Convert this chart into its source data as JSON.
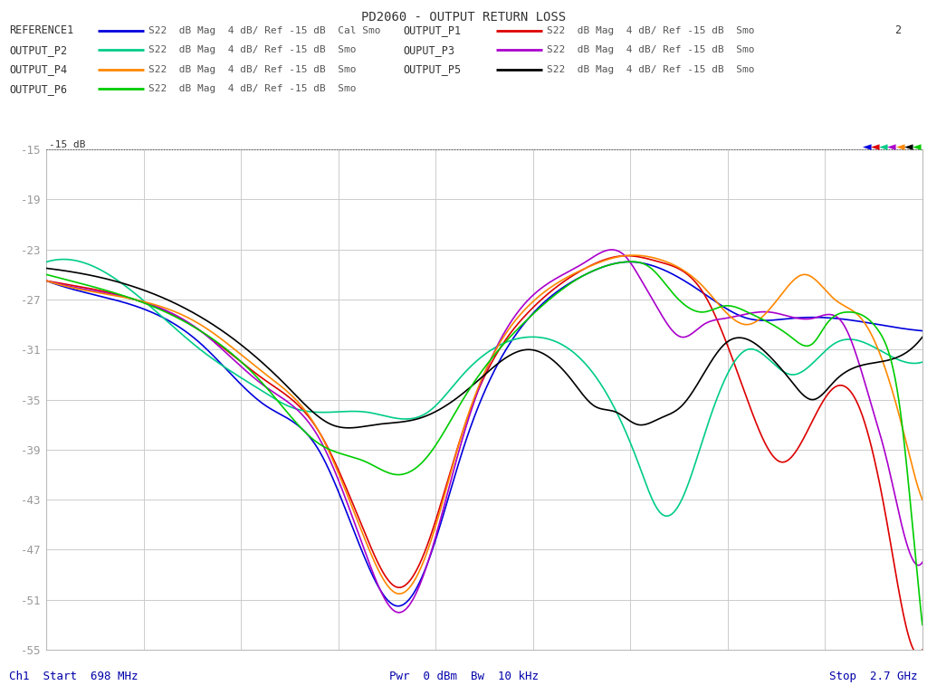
{
  "title": "PD2060 - OUTPUT RETURN LOSS",
  "xlabel_left": "Ch1  Start  698 MHz",
  "xlabel_center": "Pwr  0 dBm  Bw  10 kHz",
  "xlabel_right": "Stop  2.7 GHz",
  "ymin": -55,
  "ymax": -15,
  "yticks": [
    -15,
    -19,
    -23,
    -27,
    -31,
    -35,
    -39,
    -43,
    -47,
    -51,
    -55
  ],
  "xmin": 698,
  "xmax": 2700,
  "background_color": "#ffffff",
  "plot_bg": "#ffffff",
  "legend_entries": [
    {
      "label": "REFERENCE1",
      "desc": "S22  dB Mag  4 dB/ Ref -15 dB  Cal Smo",
      "color": "#0000dd"
    },
    {
      "label": "OUTPUT_P1",
      "desc": "S22  dB Mag  4 dB/ Ref -15 dB  Smo",
      "color": "#dd0000"
    },
    {
      "label": "OUTPUT_P2",
      "desc": "S22  dB Mag  4 dB/ Ref -15 dB  Smo",
      "color": "#00cc88"
    },
    {
      "label": "OUPUT_P3",
      "desc": "S22  dB Mag  4 dB/ Ref -15 dB  Smo",
      "color": "#aa00cc"
    },
    {
      "label": "OUTPUT_P4",
      "desc": "S22  dB Mag  4 dB/ Ref -15 dB  Smo",
      "color": "#ff8800"
    },
    {
      "label": "OUTPUT_P5",
      "desc": "S22  dB Mag  4 dB/ Ref -15 dB  Smo",
      "color": "#000000"
    },
    {
      "label": "OUTPUT_P6",
      "desc": "S22  dB Mag  4 dB/ Ref -15 dB  Smo",
      "color": "#00cc00"
    }
  ],
  "marker_colors": [
    "#0000dd",
    "#dd0000",
    "#00cc88",
    "#aa00cc",
    "#ff8800",
    "#000000",
    "#00cc00"
  ],
  "extra_label": "2",
  "trace_knots": {
    "blue": [
      [
        698,
        -25.5
      ],
      [
        900,
        -27.5
      ],
      [
        1050,
        -30.5
      ],
      [
        1200,
        -35.5
      ],
      [
        1320,
        -39.0
      ],
      [
        1430,
        -48.0
      ],
      [
        1500,
        -51.5
      ],
      [
        1570,
        -48.0
      ],
      [
        1650,
        -39.0
      ],
      [
        1800,
        -28.5
      ],
      [
        1930,
        -25.0
      ],
      [
        2020,
        -24.0
      ],
      [
        2100,
        -24.5
      ],
      [
        2200,
        -26.5
      ],
      [
        2300,
        -28.5
      ],
      [
        2400,
        -28.5
      ],
      [
        2500,
        -28.5
      ],
      [
        2600,
        -29.0
      ],
      [
        2700,
        -29.5
      ]
    ],
    "red": [
      [
        698,
        -25.5
      ],
      [
        900,
        -27.0
      ],
      [
        1050,
        -29.5
      ],
      [
        1200,
        -33.5
      ],
      [
        1320,
        -37.5
      ],
      [
        1430,
        -46.0
      ],
      [
        1500,
        -50.0
      ],
      [
        1570,
        -46.5
      ],
      [
        1650,
        -37.5
      ],
      [
        1800,
        -28.0
      ],
      [
        1930,
        -24.5
      ],
      [
        2020,
        -23.5
      ],
      [
        2100,
        -24.0
      ],
      [
        2200,
        -26.5
      ],
      [
        2300,
        -35.0
      ],
      [
        2380,
        -40.0
      ],
      [
        2430,
        -38.0
      ],
      [
        2500,
        -34.0
      ],
      [
        2560,
        -36.0
      ],
      [
        2620,
        -45.0
      ],
      [
        2680,
        -55.0
      ],
      [
        2700,
        -55.0
      ]
    ],
    "cyan": [
      [
        698,
        -24.0
      ],
      [
        900,
        -26.5
      ],
      [
        1050,
        -31.0
      ],
      [
        1200,
        -34.5
      ],
      [
        1250,
        -35.5
      ],
      [
        1350,
        -36.0
      ],
      [
        1430,
        -36.0
      ],
      [
        1500,
        -36.5
      ],
      [
        1570,
        -36.0
      ],
      [
        1650,
        -33.0
      ],
      [
        1800,
        -30.0
      ],
      [
        1950,
        -33.0
      ],
      [
        2050,
        -40.0
      ],
      [
        2100,
        -44.0
      ],
      [
        2150,
        -43.0
      ],
      [
        2200,
        -38.0
      ],
      [
        2300,
        -31.0
      ],
      [
        2400,
        -33.0
      ],
      [
        2500,
        -30.5
      ],
      [
        2600,
        -31.0
      ],
      [
        2700,
        -32.0
      ]
    ],
    "purple": [
      [
        698,
        -25.5
      ],
      [
        900,
        -27.0
      ],
      [
        1050,
        -29.5
      ],
      [
        1200,
        -34.0
      ],
      [
        1320,
        -38.0
      ],
      [
        1430,
        -47.5
      ],
      [
        1500,
        -52.0
      ],
      [
        1570,
        -48.0
      ],
      [
        1650,
        -38.0
      ],
      [
        1800,
        -27.0
      ],
      [
        1930,
        -24.0
      ],
      [
        2020,
        -23.5
      ],
      [
        2050,
        -25.0
      ],
      [
        2100,
        -28.0
      ],
      [
        2150,
        -30.0
      ],
      [
        2200,
        -29.0
      ],
      [
        2250,
        -28.5
      ],
      [
        2350,
        -28.0
      ],
      [
        2450,
        -28.5
      ],
      [
        2520,
        -29.0
      ],
      [
        2580,
        -35.0
      ],
      [
        2620,
        -40.0
      ],
      [
        2660,
        -46.0
      ],
      [
        2700,
        -48.0
      ]
    ],
    "orange": [
      [
        698,
        -25.5
      ],
      [
        900,
        -27.0
      ],
      [
        1050,
        -29.0
      ],
      [
        1200,
        -33.0
      ],
      [
        1320,
        -37.5
      ],
      [
        1430,
        -46.5
      ],
      [
        1500,
        -50.5
      ],
      [
        1570,
        -47.0
      ],
      [
        1650,
        -37.5
      ],
      [
        1800,
        -27.5
      ],
      [
        1930,
        -24.5
      ],
      [
        2020,
        -23.5
      ],
      [
        2100,
        -23.8
      ],
      [
        2200,
        -26.0
      ],
      [
        2300,
        -29.0
      ],
      [
        2380,
        -26.5
      ],
      [
        2430,
        -25.0
      ],
      [
        2500,
        -27.0
      ],
      [
        2560,
        -28.5
      ],
      [
        2610,
        -32.0
      ],
      [
        2660,
        -38.0
      ],
      [
        2690,
        -42.0
      ],
      [
        2700,
        -43.0
      ]
    ],
    "black": [
      [
        698,
        -24.5
      ],
      [
        900,
        -26.0
      ],
      [
        1100,
        -29.5
      ],
      [
        1250,
        -34.0
      ],
      [
        1350,
        -37.0
      ],
      [
        1450,
        -37.0
      ],
      [
        1550,
        -36.5
      ],
      [
        1650,
        -34.5
      ],
      [
        1700,
        -33.0
      ],
      [
        1800,
        -31.0
      ],
      [
        1900,
        -33.5
      ],
      [
        1950,
        -35.5
      ],
      [
        2000,
        -36.0
      ],
      [
        2050,
        -37.0
      ],
      [
        2100,
        -36.5
      ],
      [
        2150,
        -35.5
      ],
      [
        2250,
        -30.5
      ],
      [
        2350,
        -31.5
      ],
      [
        2400,
        -33.5
      ],
      [
        2450,
        -35.0
      ],
      [
        2500,
        -33.5
      ],
      [
        2600,
        -32.0
      ],
      [
        2700,
        -30.0
      ]
    ],
    "green": [
      [
        698,
        -25.0
      ],
      [
        900,
        -27.0
      ],
      [
        1050,
        -29.5
      ],
      [
        1200,
        -34.0
      ],
      [
        1320,
        -38.5
      ],
      [
        1430,
        -40.0
      ],
      [
        1500,
        -41.0
      ],
      [
        1570,
        -39.5
      ],
      [
        1650,
        -35.0
      ],
      [
        1800,
        -28.5
      ],
      [
        1930,
        -25.0
      ],
      [
        2020,
        -24.0
      ],
      [
        2080,
        -24.5
      ],
      [
        2130,
        -26.5
      ],
      [
        2200,
        -28.0
      ],
      [
        2250,
        -27.5
      ],
      [
        2300,
        -28.0
      ],
      [
        2400,
        -30.0
      ],
      [
        2450,
        -30.5
      ],
      [
        2480,
        -29.0
      ],
      [
        2530,
        -28.0
      ],
      [
        2600,
        -29.5
      ],
      [
        2650,
        -36.0
      ],
      [
        2680,
        -46.0
      ],
      [
        2700,
        -53.0
      ]
    ]
  }
}
